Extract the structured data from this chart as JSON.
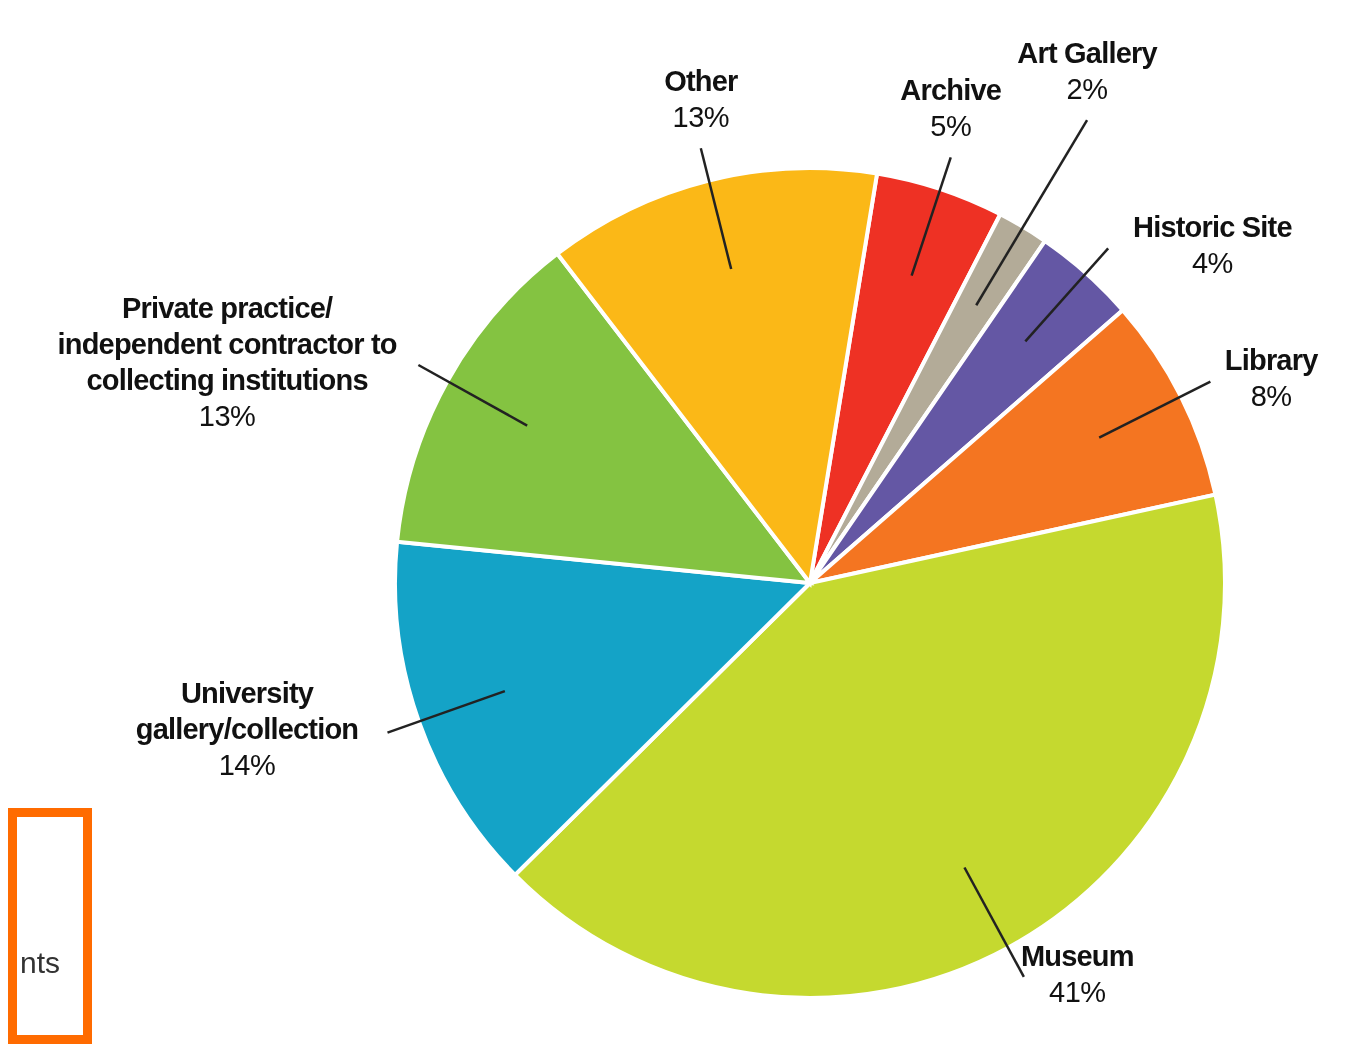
{
  "chart_data": {
    "type": "pie",
    "categories": [
      "Archive",
      "Art Gallery",
      "Historic Site",
      "Library",
      "Museum",
      "University gallery/collection",
      "Private practice/ independent contractor to collecting institutions",
      "Other"
    ],
    "values": [
      5,
      2,
      4,
      8,
      41,
      14,
      13,
      13
    ],
    "colors": [
      "#ee3124",
      "#b3ab98",
      "#6457a4",
      "#f47521",
      "#c5d92f",
      "#14a3c7",
      "#84c341",
      "#fbb817"
    ],
    "value_labels": [
      "5%",
      "2%",
      "4%",
      "8%",
      "41%",
      "14%",
      "13%",
      "13%"
    ],
    "annotations": [
      "nts"
    ]
  }
}
